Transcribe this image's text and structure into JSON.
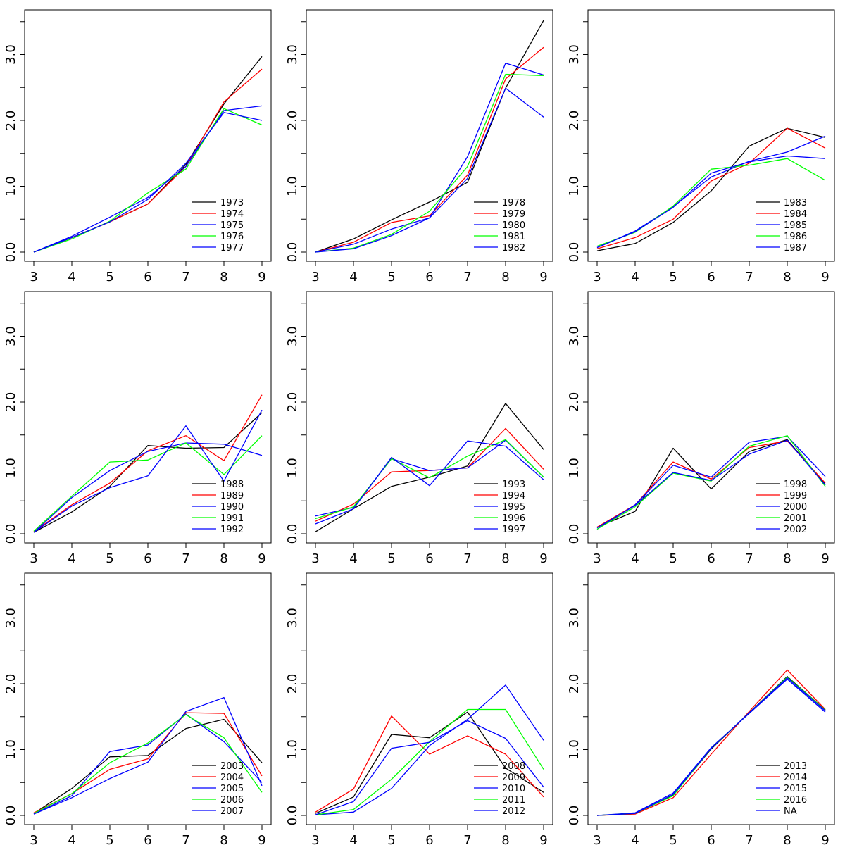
{
  "chart_data": [
    {
      "type": "line",
      "x": [
        3,
        4,
        5,
        6,
        7,
        8,
        9
      ],
      "xlim": [
        3,
        9
      ],
      "ylim": [
        0,
        3.5
      ],
      "xticks": [
        "3",
        "4",
        "5",
        "6",
        "7",
        "8",
        "9"
      ],
      "yticks": [
        "0.0",
        "1.0",
        "2.0",
        "3.0"
      ],
      "legend": "bottom-right",
      "series": [
        {
          "name": "1973",
          "color": "#000000",
          "values": [
            0.0,
            0.22,
            0.46,
            0.73,
            1.33,
            2.25,
            2.97
          ]
        },
        {
          "name": "1974",
          "color": "#ff0000",
          "values": [
            0.0,
            0.22,
            0.46,
            0.73,
            1.3,
            2.28,
            2.78
          ]
        },
        {
          "name": "1975",
          "color": "#0000ff",
          "values": [
            0.0,
            0.24,
            0.53,
            0.83,
            1.3,
            2.15,
            2.22
          ]
        },
        {
          "name": "1976",
          "color": "#00ff00",
          "values": [
            0.0,
            0.2,
            0.47,
            0.9,
            1.26,
            2.18,
            1.93
          ]
        },
        {
          "name": "1977",
          "color": "#0000ff",
          "values": [
            0.0,
            0.22,
            0.46,
            0.8,
            1.35,
            2.12,
            2.0
          ]
        }
      ]
    },
    {
      "type": "line",
      "x": [
        3,
        4,
        5,
        6,
        7,
        8,
        9
      ],
      "xlim": [
        3,
        9
      ],
      "ylim": [
        0,
        3.5
      ],
      "xticks": [
        "3",
        "4",
        "5",
        "6",
        "7",
        "8",
        "9"
      ],
      "yticks": [
        "0.0",
        "1.0",
        "2.0",
        "3.0"
      ],
      "legend": "bottom-right",
      "series": [
        {
          "name": "1978",
          "color": "#000000",
          "values": [
            0.0,
            0.2,
            0.49,
            0.76,
            1.06,
            2.49,
            3.52
          ]
        },
        {
          "name": "1979",
          "color": "#ff0000",
          "values": [
            0.0,
            0.15,
            0.45,
            0.55,
            1.17,
            2.63,
            3.11
          ]
        },
        {
          "name": "1980",
          "color": "#0000ff",
          "values": [
            0.0,
            0.12,
            0.35,
            0.52,
            1.45,
            2.87,
            2.69
          ]
        },
        {
          "name": "1981",
          "color": "#00ff00",
          "values": [
            0.0,
            0.06,
            0.27,
            0.62,
            1.3,
            2.7,
            2.68
          ]
        },
        {
          "name": "1982",
          "color": "#0000ff",
          "values": [
            0.0,
            0.05,
            0.25,
            0.52,
            1.12,
            2.49,
            2.05
          ]
        }
      ]
    },
    {
      "type": "line",
      "x": [
        3,
        4,
        5,
        6,
        7,
        8,
        9
      ],
      "xlim": [
        3,
        9
      ],
      "ylim": [
        0,
        3.5
      ],
      "xticks": [
        "3",
        "4",
        "5",
        "6",
        "7",
        "8",
        "9"
      ],
      "yticks": [
        "0.0",
        "1.0",
        "2.0",
        "3.0"
      ],
      "legend": "bottom-right",
      "series": [
        {
          "name": "1983",
          "color": "#000000",
          "values": [
            0.02,
            0.13,
            0.45,
            0.93,
            1.61,
            1.88,
            1.74
          ]
        },
        {
          "name": "1984",
          "color": "#ff0000",
          "values": [
            0.05,
            0.22,
            0.5,
            1.08,
            1.35,
            1.88,
            1.58
          ]
        },
        {
          "name": "1985",
          "color": "#0000ff",
          "values": [
            0.07,
            0.32,
            0.69,
            1.14,
            1.38,
            1.52,
            1.76
          ]
        },
        {
          "name": "1986",
          "color": "#00ff00",
          "values": [
            0.09,
            0.3,
            0.7,
            1.26,
            1.32,
            1.42,
            1.09
          ]
        },
        {
          "name": "1987",
          "color": "#0000ff",
          "values": [
            0.07,
            0.31,
            0.68,
            1.2,
            1.37,
            1.46,
            1.42
          ]
        }
      ]
    },
    {
      "type": "line",
      "x": [
        3,
        4,
        5,
        6,
        7,
        8,
        9
      ],
      "xlim": [
        3,
        9
      ],
      "ylim": [
        0,
        3.5
      ],
      "xticks": [
        "3",
        "4",
        "5",
        "6",
        "7",
        "8",
        "9"
      ],
      "yticks": [
        "0.0",
        "1.0",
        "2.0",
        "3.0"
      ],
      "legend": "bottom-right",
      "series": [
        {
          "name": "1988",
          "color": "#000000",
          "values": [
            0.02,
            0.33,
            0.72,
            1.34,
            1.3,
            1.31,
            1.84
          ]
        },
        {
          "name": "1989",
          "color": "#ff0000",
          "values": [
            0.03,
            0.44,
            0.77,
            1.26,
            1.49,
            1.11,
            2.11
          ]
        },
        {
          "name": "1990",
          "color": "#0000ff",
          "values": [
            0.02,
            0.55,
            0.96,
            1.25,
            1.38,
            1.36,
            1.19
          ]
        },
        {
          "name": "1991",
          "color": "#00ff00",
          "values": [
            0.04,
            0.57,
            1.09,
            1.12,
            1.38,
            0.9,
            1.49
          ]
        },
        {
          "name": "1992",
          "color": "#0000ff",
          "values": [
            0.02,
            0.42,
            0.7,
            0.88,
            1.64,
            0.8,
            1.88
          ]
        }
      ]
    },
    {
      "type": "line",
      "x": [
        3,
        4,
        5,
        6,
        7,
        8,
        9
      ],
      "xlim": [
        3,
        9
      ],
      "ylim": [
        0,
        3.5
      ],
      "xticks": [
        "3",
        "4",
        "5",
        "6",
        "7",
        "8",
        "9"
      ],
      "yticks": [
        "0.0",
        "1.0",
        "2.0",
        "3.0"
      ],
      "legend": "bottom-right",
      "series": [
        {
          "name": "1993",
          "color": "#000000",
          "values": [
            0.03,
            0.38,
            0.72,
            0.86,
            1.03,
            1.98,
            1.28
          ]
        },
        {
          "name": "1994",
          "color": "#ff0000",
          "values": [
            0.19,
            0.45,
            0.94,
            0.96,
            1.0,
            1.6,
            0.98
          ]
        },
        {
          "name": "1995",
          "color": "#0000ff",
          "values": [
            0.27,
            0.4,
            1.14,
            0.96,
            1.0,
            1.42,
            0.86
          ]
        },
        {
          "name": "1996",
          "color": "#00ff00",
          "values": [
            0.23,
            0.41,
            1.14,
            0.85,
            1.18,
            1.43,
            0.86
          ]
        },
        {
          "name": "1997",
          "color": "#0000ff",
          "values": [
            0.15,
            0.38,
            1.16,
            0.73,
            1.41,
            1.33,
            0.82
          ]
        }
      ]
    },
    {
      "type": "line",
      "x": [
        3,
        4,
        5,
        6,
        7,
        8,
        9
      ],
      "xlim": [
        3,
        9
      ],
      "ylim": [
        0,
        3.5
      ],
      "xticks": [
        "3",
        "4",
        "5",
        "6",
        "7",
        "8",
        "9"
      ],
      "yticks": [
        "0.0",
        "1.0",
        "2.0",
        "3.0"
      ],
      "legend": "bottom-right",
      "series": [
        {
          "name": "1998",
          "color": "#000000",
          "values": [
            0.1,
            0.34,
            1.3,
            0.68,
            1.25,
            1.43,
            0.75
          ]
        },
        {
          "name": "1999",
          "color": "#ff0000",
          "values": [
            0.1,
            0.44,
            1.09,
            0.83,
            1.31,
            1.41,
            0.77
          ]
        },
        {
          "name": "2000",
          "color": "#0000ff",
          "values": [
            0.07,
            0.44,
            1.04,
            0.86,
            1.39,
            1.48,
            0.87
          ]
        },
        {
          "name": "2001",
          "color": "#00ff00",
          "values": [
            0.07,
            0.41,
            0.92,
            0.8,
            1.33,
            1.49,
            0.72
          ]
        },
        {
          "name": "2002",
          "color": "#0000ff",
          "values": [
            0.09,
            0.43,
            0.93,
            0.81,
            1.21,
            1.42,
            0.74
          ]
        }
      ]
    },
    {
      "type": "line",
      "x": [
        3,
        4,
        5,
        6,
        7,
        8,
        9
      ],
      "xlim": [
        3,
        9
      ],
      "ylim": [
        0,
        3.5
      ],
      "xticks": [
        "3",
        "4",
        "5",
        "6",
        "7",
        "8",
        "9"
      ],
      "yticks": [
        "0.0",
        "1.0",
        "2.0",
        "3.0"
      ],
      "legend": "bottom-right",
      "series": [
        {
          "name": "2003",
          "color": "#000000",
          "values": [
            0.03,
            0.41,
            0.89,
            0.91,
            1.32,
            1.46,
            0.8
          ]
        },
        {
          "name": "2004",
          "color": "#ff0000",
          "values": [
            0.04,
            0.33,
            0.7,
            0.86,
            1.56,
            1.55,
            0.6
          ]
        },
        {
          "name": "2005",
          "color": "#0000ff",
          "values": [
            0.02,
            0.3,
            0.97,
            1.07,
            1.54,
            1.12,
            0.5
          ]
        },
        {
          "name": "2006",
          "color": "#00ff00",
          "values": [
            0.03,
            0.33,
            0.8,
            1.1,
            1.53,
            1.18,
            0.35
          ]
        },
        {
          "name": "2007",
          "color": "#0000ff",
          "values": [
            0.02,
            0.27,
            0.56,
            0.81,
            1.58,
            1.79,
            0.45
          ]
        }
      ]
    },
    {
      "type": "line",
      "x": [
        3,
        4,
        5,
        6,
        7,
        8,
        9
      ],
      "xlim": [
        3,
        9
      ],
      "ylim": [
        0,
        3.5
      ],
      "xticks": [
        "3",
        "4",
        "5",
        "6",
        "7",
        "8",
        "9"
      ],
      "yticks": [
        "0.0",
        "1.0",
        "2.0",
        "3.0"
      ],
      "legend": "bottom-right",
      "series": [
        {
          "name": "2008",
          "color": "#000000",
          "values": [
            0.03,
            0.28,
            1.23,
            1.18,
            1.57,
            0.72,
            0.35
          ]
        },
        {
          "name": "2009",
          "color": "#ff0000",
          "values": [
            0.05,
            0.4,
            1.51,
            0.93,
            1.21,
            0.93,
            0.28
          ]
        },
        {
          "name": "2010",
          "color": "#0000ff",
          "values": [
            0.01,
            0.05,
            0.41,
            1.06,
            1.46,
            1.98,
            1.14
          ]
        },
        {
          "name": "2011",
          "color": "#00ff00",
          "values": [
            0.01,
            0.09,
            0.55,
            1.12,
            1.61,
            1.61,
            0.7
          ]
        },
        {
          "name": "2012",
          "color": "#0000ff",
          "values": [
            0.01,
            0.21,
            1.02,
            1.11,
            1.44,
            1.17,
            0.43
          ]
        }
      ]
    },
    {
      "type": "line",
      "x": [
        3,
        4,
        5,
        6,
        7,
        8,
        9
      ],
      "xlim": [
        3,
        9
      ],
      "ylim": [
        0,
        3.5
      ],
      "xticks": [
        "3",
        "4",
        "5",
        "6",
        "7",
        "8",
        "9"
      ],
      "yticks": [
        "0.0",
        "1.0",
        "2.0",
        "3.0"
      ],
      "legend": "bottom-right",
      "series": [
        {
          "name": "2013",
          "color": "#000000",
          "values": [
            0.0,
            0.03,
            0.31,
            1.01,
            1.56,
            2.11,
            1.6
          ]
        },
        {
          "name": "2014",
          "color": "#ff0000",
          "values": [
            0.0,
            0.02,
            0.27,
            0.93,
            1.58,
            2.21,
            1.61
          ]
        },
        {
          "name": "2015",
          "color": "#0000ff",
          "values": [
            0.0,
            0.04,
            0.34,
            1.03,
            1.55,
            2.07,
            1.57
          ]
        },
        {
          "name": "2016",
          "color": "#00ff00",
          "values": [
            0.0,
            0.03,
            0.3,
            1.02,
            1.56,
            2.1,
            1.6
          ]
        },
        {
          "name": "NA",
          "color": "#0000ff",
          "values": [
            0.0,
            0.03,
            0.32,
            1.02,
            1.56,
            2.09,
            1.59
          ]
        }
      ]
    }
  ]
}
